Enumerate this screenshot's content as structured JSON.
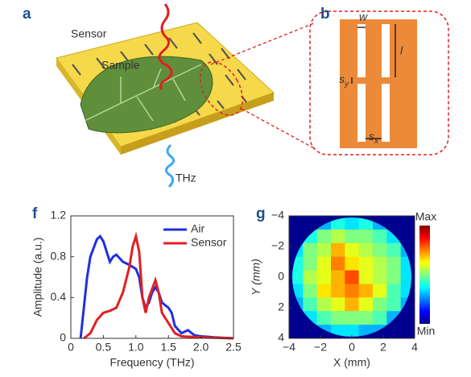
{
  "panels": {
    "a": {
      "letter": "a",
      "sensor": "Sensor",
      "sample": "Sample",
      "thz": "THz"
    },
    "b": {
      "letter": "b",
      "w": "w",
      "l": "l",
      "sy": {
        "symbol": "s",
        "subscript": "y"
      },
      "sx": {
        "symbol": "s",
        "subscript": "x"
      }
    },
    "f": {
      "letter": "f"
    },
    "g": {
      "letter": "g"
    }
  },
  "chart_data": [
    {
      "type": "line",
      "xlabel": "Frequency (THz)",
      "ylabel": "Amplitude (a.u.)",
      "xlim": [
        0,
        2.5
      ],
      "ylim": [
        0,
        1.2
      ],
      "xticks": [
        0,
        0.5,
        {
          "value": 1,
          "label": "1.0"
        },
        1.5,
        {
          "value": 2,
          "label": "2.0"
        },
        2.5
      ],
      "yticks": [
        0,
        0.4,
        0.8,
        1.2
      ],
      "legend": "upper right",
      "series": [
        {
          "name": "Air",
          "color": "#1f2fe0",
          "x": [
            0.15,
            0.2,
            0.25,
            0.3,
            0.4,
            0.45,
            0.5,
            0.55,
            0.6,
            0.65,
            0.7,
            0.8,
            0.9,
            1.0,
            1.05,
            1.1,
            1.15,
            1.2,
            1.25,
            1.3,
            1.35,
            1.4,
            1.5,
            1.55,
            1.6,
            1.7,
            1.8,
            1.9,
            2.0,
            2.2,
            2.5
          ],
          "values": [
            0,
            0.3,
            0.6,
            0.8,
            0.97,
            1.0,
            0.95,
            0.85,
            0.75,
            0.8,
            0.82,
            0.75,
            0.72,
            0.68,
            0.6,
            0.4,
            0.3,
            0.35,
            0.45,
            0.5,
            0.45,
            0.35,
            0.3,
            0.25,
            0.12,
            0.05,
            0.08,
            0.03,
            0.02,
            0.01,
            0
          ]
        },
        {
          "name": "Sensor",
          "color": "#e02020",
          "x": [
            0.2,
            0.3,
            0.4,
            0.5,
            0.6,
            0.7,
            0.8,
            0.9,
            0.95,
            1.0,
            1.05,
            1.1,
            1.15,
            1.2,
            1.3,
            1.35,
            1.4,
            1.5,
            1.6,
            1.7,
            2.0,
            2.5
          ],
          "values": [
            0,
            0.05,
            0.18,
            0.25,
            0.27,
            0.3,
            0.45,
            0.7,
            0.9,
            1.0,
            0.85,
            0.4,
            0.25,
            0.4,
            0.57,
            0.45,
            0.25,
            0.15,
            0.05,
            0.02,
            0.01,
            0
          ]
        }
      ]
    },
    {
      "type": "heatmap",
      "xlabel": "X (mm)",
      "ylabel": "Y (mm)",
      "xlim": [
        -4,
        4
      ],
      "ylim": [
        -4,
        4
      ],
      "y_inverted": true,
      "xticks": [
        {
          "value": -4,
          "label": "−4"
        },
        {
          "value": -2,
          "label": "−2"
        },
        0,
        2,
        4
      ],
      "yticks": [
        {
          "value": -4,
          "label": "−4"
        },
        {
          "value": -2,
          "label": "−2"
        },
        0,
        2,
        4
      ],
      "colormap": "jet",
      "colorbar_labels": [
        "Max",
        "Min"
      ],
      "zlim": [
        0,
        1
      ],
      "z": [
        [
          null,
          null,
          0.3,
          0.4,
          0.35,
          0.4,
          0.3,
          null,
          null
        ],
        [
          null,
          0.4,
          0.5,
          0.55,
          0.5,
          0.5,
          0.45,
          0.35,
          null
        ],
        [
          0.35,
          0.5,
          0.55,
          0.7,
          0.6,
          0.55,
          0.5,
          0.45,
          0.3
        ],
        [
          0.4,
          0.5,
          0.6,
          0.75,
          0.65,
          0.6,
          0.55,
          0.5,
          0.35
        ],
        [
          0.4,
          0.55,
          0.6,
          0.7,
          0.8,
          0.6,
          0.55,
          0.5,
          0.35
        ],
        [
          0.35,
          0.5,
          0.65,
          0.7,
          0.75,
          0.7,
          0.6,
          0.45,
          0.35
        ],
        [
          0.3,
          0.45,
          0.55,
          0.6,
          0.7,
          0.6,
          0.5,
          0.45,
          0.3
        ],
        [
          null,
          0.35,
          0.45,
          0.5,
          0.5,
          0.5,
          0.45,
          0.3,
          null
        ],
        [
          null,
          null,
          0.3,
          0.35,
          0.35,
          0.3,
          0.3,
          null,
          null
        ]
      ]
    }
  ]
}
